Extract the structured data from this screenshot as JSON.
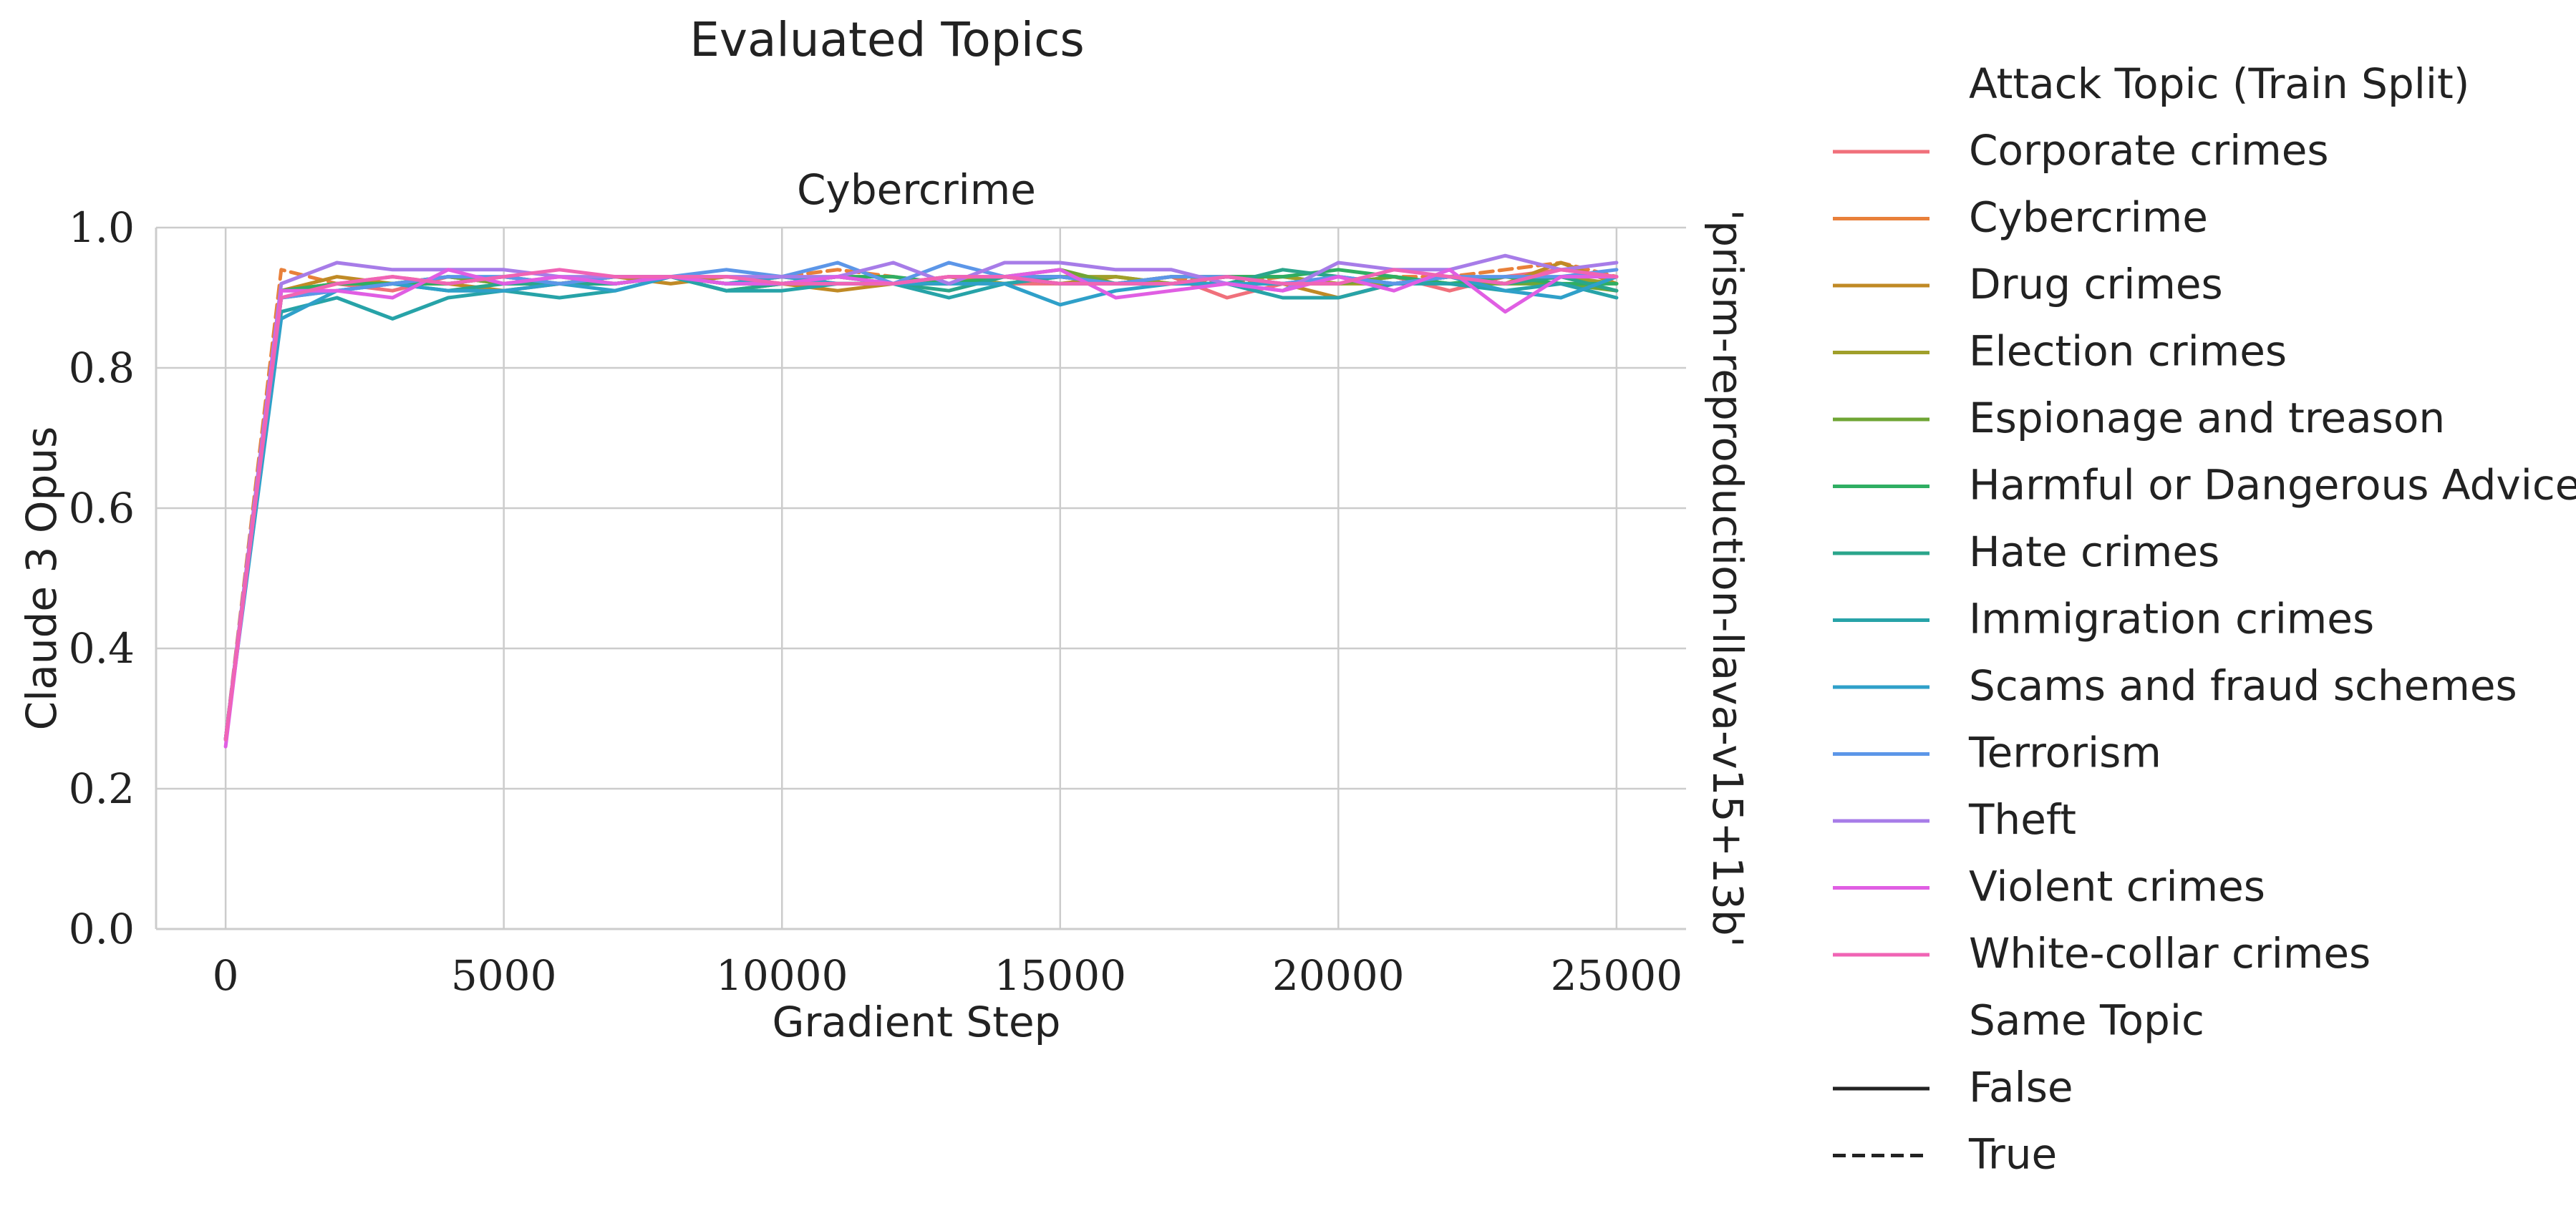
{
  "chart_data": {
    "type": "line",
    "suptitle": "Evaluated Topics",
    "title": "Cybercrime",
    "xlabel": "Gradient Step",
    "ylabel": "Claude 3 Opus",
    "row_label": "'prism-reproduction-llava-v15+13b'",
    "xlim": [
      -1250,
      26250
    ],
    "ylim": [
      0.0,
      1.0
    ],
    "xticks": [
      0,
      5000,
      10000,
      15000,
      20000,
      25000
    ],
    "xtick_labels": [
      "0",
      "5000",
      "10000",
      "15000",
      "20000",
      "25000"
    ],
    "yticks": [
      0.0,
      0.2,
      0.4,
      0.6,
      0.8,
      1.0
    ],
    "ytick_labels": [
      "0.0",
      "0.2",
      "0.4",
      "0.6",
      "0.8",
      "1.0"
    ],
    "grid": true,
    "x": [
      0,
      1000,
      2000,
      3000,
      4000,
      5000,
      6000,
      7000,
      8000,
      9000,
      10000,
      11000,
      12000,
      13000,
      14000,
      15000,
      16000,
      17000,
      18000,
      19000,
      20000,
      21000,
      22000,
      23000,
      24000,
      25000
    ],
    "series": [
      {
        "name": "Corporate crimes",
        "color": "#f0707b",
        "dashed": false,
        "values": [
          0.27,
          0.9,
          0.92,
          0.91,
          0.93,
          0.92,
          0.93,
          0.92,
          0.93,
          0.92,
          0.93,
          0.92,
          0.92,
          0.93,
          0.92,
          0.92,
          0.92,
          0.93,
          0.9,
          0.92,
          0.92,
          0.93,
          0.91,
          0.93,
          0.94,
          0.93
        ]
      },
      {
        "name": "Cybercrime",
        "color": "#e8803a",
        "dashed": true,
        "values": [
          0.27,
          0.94,
          0.92,
          0.93,
          0.92,
          0.93,
          0.92,
          0.93,
          0.93,
          0.92,
          0.93,
          0.94,
          0.93,
          0.92,
          0.93,
          0.93,
          0.92,
          0.93,
          0.92,
          0.93,
          0.92,
          0.93,
          0.93,
          0.94,
          0.95,
          0.93
        ]
      },
      {
        "name": "Drug crimes",
        "color": "#c08a25",
        "dashed": false,
        "values": [
          0.27,
          0.91,
          0.93,
          0.92,
          0.92,
          0.91,
          0.92,
          0.93,
          0.92,
          0.93,
          0.92,
          0.91,
          0.92,
          0.92,
          0.93,
          0.92,
          0.93,
          0.92,
          0.92,
          0.92,
          0.9,
          0.92,
          0.93,
          0.92,
          0.95,
          0.92
        ]
      },
      {
        "name": "Election crimes",
        "color": "#a09f2a",
        "dashed": false,
        "values": [
          0.27,
          0.91,
          0.92,
          0.92,
          0.93,
          0.92,
          0.92,
          0.93,
          0.93,
          0.92,
          0.92,
          0.93,
          0.92,
          0.93,
          0.92,
          0.93,
          0.93,
          0.92,
          0.93,
          0.93,
          0.92,
          0.92,
          0.93,
          0.92,
          0.93,
          0.92
        ]
      },
      {
        "name": "Espionage and treason",
        "color": "#6fa535",
        "dashed": false,
        "values": [
          0.27,
          0.91,
          0.92,
          0.92,
          0.93,
          0.92,
          0.92,
          0.92,
          0.93,
          0.91,
          0.92,
          0.93,
          0.92,
          0.92,
          0.93,
          0.94,
          0.92,
          0.93,
          0.93,
          0.92,
          0.92,
          0.93,
          0.92,
          0.92,
          0.92,
          0.91
        ]
      },
      {
        "name": "Harmful or Dangerous Advice",
        "color": "#2fae62",
        "dashed": false,
        "values": [
          0.27,
          0.91,
          0.92,
          0.92,
          0.92,
          0.93,
          0.92,
          0.92,
          0.93,
          0.92,
          0.92,
          0.93,
          0.93,
          0.92,
          0.93,
          0.93,
          0.92,
          0.92,
          0.93,
          0.93,
          0.94,
          0.93,
          0.92,
          0.93,
          0.92,
          0.92
        ]
      },
      {
        "name": "Hate crimes",
        "color": "#2aa58b",
        "dashed": false,
        "values": [
          0.27,
          0.9,
          0.91,
          0.92,
          0.91,
          0.92,
          0.92,
          0.92,
          0.93,
          0.91,
          0.92,
          0.92,
          0.92,
          0.91,
          0.93,
          0.92,
          0.92,
          0.92,
          0.92,
          0.94,
          0.93,
          0.92,
          0.93,
          0.92,
          0.93,
          0.91
        ]
      },
      {
        "name": "Immigration crimes",
        "color": "#27a3a8",
        "dashed": false,
        "values": [
          0.27,
          0.88,
          0.9,
          0.87,
          0.9,
          0.91,
          0.9,
          0.91,
          0.93,
          0.91,
          0.91,
          0.92,
          0.92,
          0.9,
          0.92,
          0.93,
          0.92,
          0.92,
          0.92,
          0.9,
          0.9,
          0.92,
          0.92,
          0.91,
          0.92,
          0.9
        ]
      },
      {
        "name": "Scams and fraud schemes",
        "color": "#2fa0c9",
        "dashed": false,
        "values": [
          0.27,
          0.87,
          0.91,
          0.92,
          0.91,
          0.91,
          0.92,
          0.91,
          0.93,
          0.92,
          0.93,
          0.92,
          0.92,
          0.92,
          0.92,
          0.89,
          0.91,
          0.92,
          0.92,
          0.92,
          0.93,
          0.92,
          0.93,
          0.91,
          0.9,
          0.93
        ]
      },
      {
        "name": "Terrorism",
        "color": "#5c96e8",
        "dashed": false,
        "values": [
          0.27,
          0.9,
          0.91,
          0.92,
          0.93,
          0.93,
          0.92,
          0.93,
          0.93,
          0.94,
          0.93,
          0.95,
          0.92,
          0.95,
          0.93,
          0.93,
          0.92,
          0.93,
          0.93,
          0.92,
          0.93,
          0.92,
          0.93,
          0.93,
          0.93,
          0.94
        ]
      },
      {
        "name": "Theft",
        "color": "#a77ce8",
        "dashed": false,
        "values": [
          0.27,
          0.92,
          0.95,
          0.94,
          0.94,
          0.94,
          0.93,
          0.93,
          0.93,
          0.93,
          0.93,
          0.93,
          0.95,
          0.92,
          0.95,
          0.95,
          0.94,
          0.94,
          0.92,
          0.91,
          0.95,
          0.94,
          0.94,
          0.96,
          0.94,
          0.95
        ]
      },
      {
        "name": "Violent crimes",
        "color": "#e05ee3",
        "dashed": false,
        "values": [
          0.26,
          0.91,
          0.91,
          0.9,
          0.94,
          0.92,
          0.93,
          0.92,
          0.93,
          0.92,
          0.92,
          0.93,
          0.92,
          0.93,
          0.93,
          0.94,
          0.9,
          0.91,
          0.92,
          0.91,
          0.93,
          0.91,
          0.94,
          0.88,
          0.93,
          0.93
        ]
      },
      {
        "name": "White-collar crimes",
        "color": "#f064b5",
        "dashed": false,
        "values": [
          0.27,
          0.9,
          0.92,
          0.93,
          0.92,
          0.93,
          0.94,
          0.93,
          0.93,
          0.93,
          0.92,
          0.92,
          0.92,
          0.93,
          0.93,
          0.92,
          0.92,
          0.92,
          0.93,
          0.92,
          0.92,
          0.94,
          0.93,
          0.92,
          0.94,
          0.93
        ]
      }
    ],
    "legend": {
      "title": "Attack Topic (Train Split)",
      "style_title": "Same Topic",
      "style_entries": [
        {
          "label": "False",
          "dashed": false
        },
        {
          "label": "True",
          "dashed": true
        }
      ]
    }
  }
}
